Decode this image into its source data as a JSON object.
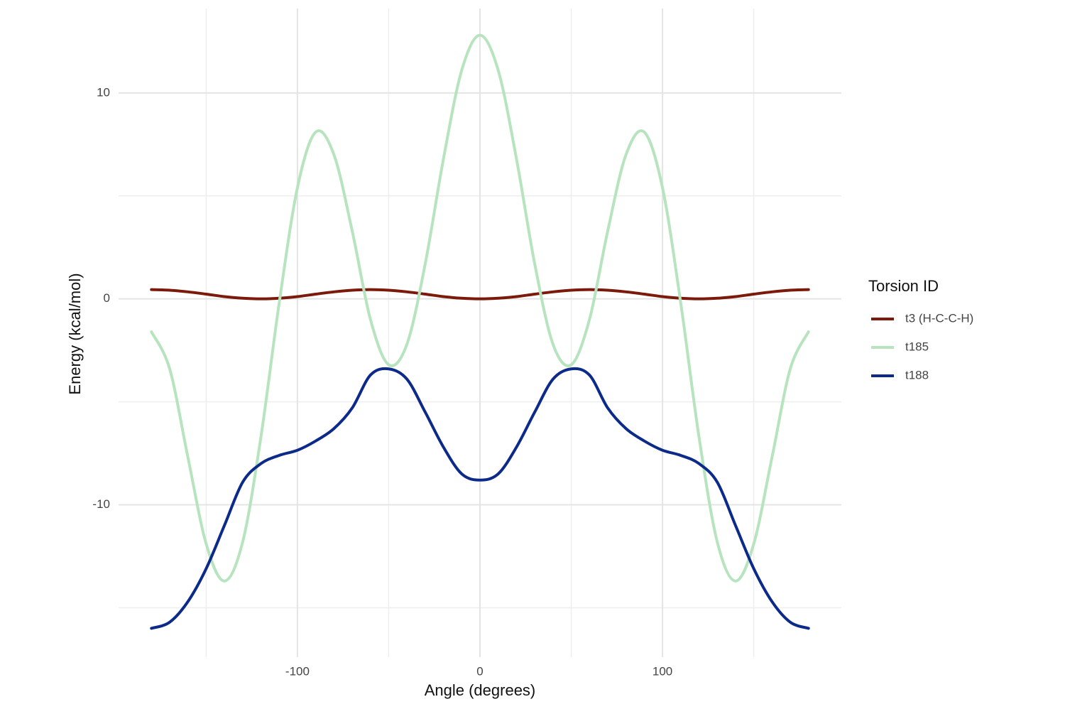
{
  "chart_data": {
    "type": "line",
    "xlabel": "Angle (degrees)",
    "ylabel": "Energy (kcal/mol)",
    "legend_title": "Torsion ID",
    "legend_position": "right",
    "x": [
      -180,
      -170,
      -160,
      -150,
      -140,
      -130,
      -120,
      -110,
      -100,
      -90,
      -80,
      -70,
      -60,
      -50,
      -40,
      -30,
      -20,
      -10,
      0,
      10,
      20,
      30,
      40,
      50,
      60,
      70,
      80,
      90,
      100,
      110,
      120,
      130,
      140,
      150,
      160,
      170,
      180
    ],
    "series": [
      {
        "name": "t3 (H-C-C-H)",
        "color": "#7b1a0a",
        "values": [
          0.45,
          0.42,
          0.34,
          0.23,
          0.11,
          0.03,
          0,
          0.03,
          0.11,
          0.23,
          0.34,
          0.42,
          0.45,
          0.42,
          0.34,
          0.23,
          0.11,
          0.03,
          0,
          0.03,
          0.11,
          0.23,
          0.34,
          0.42,
          0.45,
          0.42,
          0.34,
          0.23,
          0.11,
          0.03,
          0,
          0.03,
          0.11,
          0.23,
          0.34,
          0.42,
          0.45
        ]
      },
      {
        "name": "t185",
        "color": "#b7e4bf",
        "values": [
          -1.6,
          -3.4,
          -7.7,
          -11.9,
          -13.7,
          -11.8,
          -6.7,
          -0.2,
          5.4,
          8.1,
          7.0,
          3.3,
          -1.0,
          -3.2,
          -2.2,
          1.7,
          6.8,
          11.1,
          12.8,
          11.1,
          6.8,
          1.7,
          -2.2,
          -3.2,
          -1.0,
          3.3,
          7.0,
          8.1,
          5.4,
          -0.2,
          -6.7,
          -11.8,
          -13.7,
          -11.9,
          -7.7,
          -3.4,
          -1.6
        ]
      },
      {
        "name": "t188",
        "color": "#0c2a8a",
        "values": [
          -16.0,
          -15.7,
          -14.7,
          -13.1,
          -11.0,
          -8.9,
          -8.0,
          -7.6,
          -7.35,
          -6.9,
          -6.3,
          -5.3,
          -3.7,
          -3.4,
          -3.9,
          -5.5,
          -7.2,
          -8.5,
          -8.8,
          -8.5,
          -7.2,
          -5.5,
          -3.9,
          -3.4,
          -3.7,
          -5.3,
          -6.3,
          -6.9,
          -7.35,
          -7.6,
          -8.0,
          -8.9,
          -11.0,
          -13.1,
          -14.7,
          -15.7,
          -16.0
        ]
      }
    ],
    "xlim": [
      -198,
      198
    ],
    "ylim": [
      -17.4,
      14.1
    ],
    "xticks": [
      -100,
      0,
      100
    ],
    "yticks": [
      -10,
      0,
      10
    ],
    "xminor": [
      -150,
      -50,
      50,
      150
    ],
    "yminor": [
      -15,
      -5,
      5
    ],
    "grid": true
  }
}
